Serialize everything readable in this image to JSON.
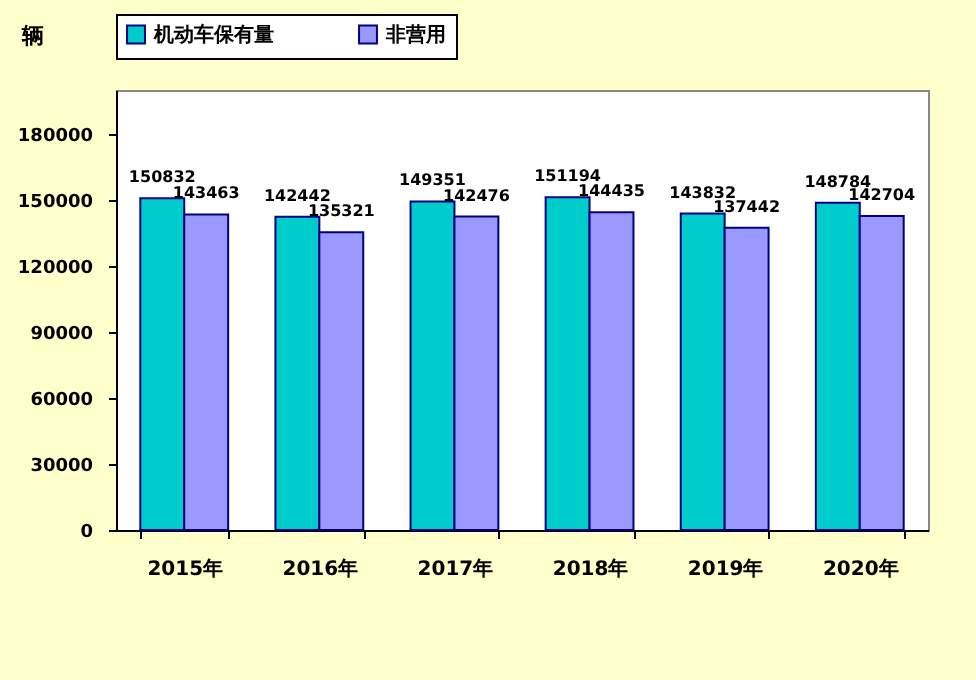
{
  "chart_data": {
    "type": "bar",
    "ylabel": "辆",
    "categories": [
      "2015年",
      "2016年",
      "2017年",
      "2018年",
      "2019年",
      "2020年"
    ],
    "series": [
      {
        "name": "机动车保有量",
        "color": "#00cccc",
        "values": [
          150832,
          142442,
          149351,
          151194,
          143832,
          148784
        ]
      },
      {
        "name": "非营用",
        "color": "#9999ff",
        "values": [
          143463,
          135321,
          142476,
          144435,
          137442,
          142704
        ]
      }
    ],
    "ylim": [
      0,
      200000
    ],
    "yticks": [
      0,
      30000,
      60000,
      90000,
      120000,
      150000,
      180000
    ],
    "grid": false,
    "legend": "top",
    "data_labels": true
  }
}
